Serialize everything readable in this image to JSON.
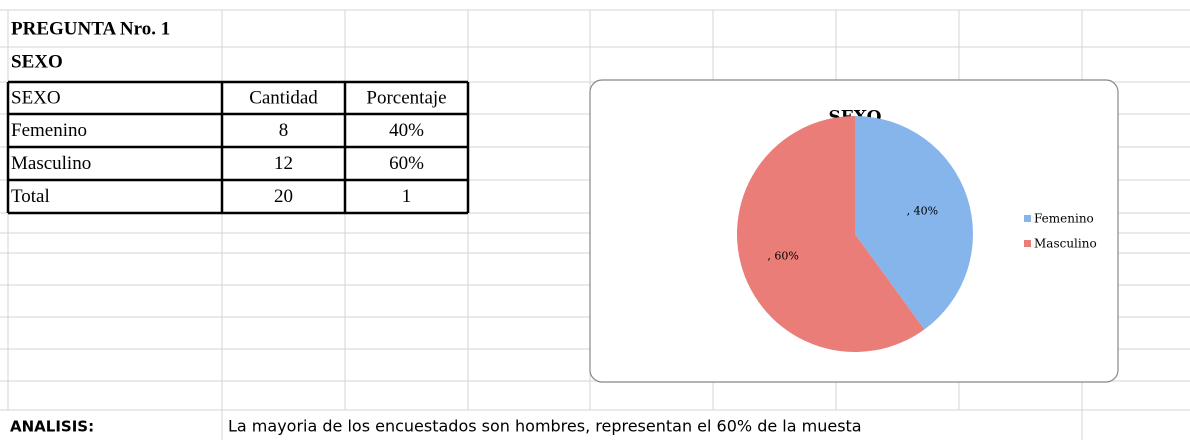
{
  "header": {
    "title": "PREGUNTA Nro. 1",
    "subtitle": "SEXO"
  },
  "table": {
    "columns": [
      "SEXO",
      "Cantidad",
      "Porcentaje"
    ],
    "rows": [
      [
        "Femenino",
        "8",
        "40%"
      ],
      [
        "Masculino",
        "12",
        "60%"
      ],
      [
        "Total",
        "20",
        "1"
      ]
    ]
  },
  "chart_data": {
    "type": "pie",
    "title": "SEXO",
    "categories": [
      "Femenino",
      "Masculino"
    ],
    "values": [
      40,
      60
    ],
    "value_labels": [
      ", 40%",
      ", 60%"
    ],
    "colors": [
      "#86b5ec",
      "#ea7d78"
    ],
    "legend": "right"
  },
  "analysis": {
    "label": "ANALISIS:",
    "text": "La mayoria de los encuestados son hombres, representan el 60% de la muesta"
  }
}
